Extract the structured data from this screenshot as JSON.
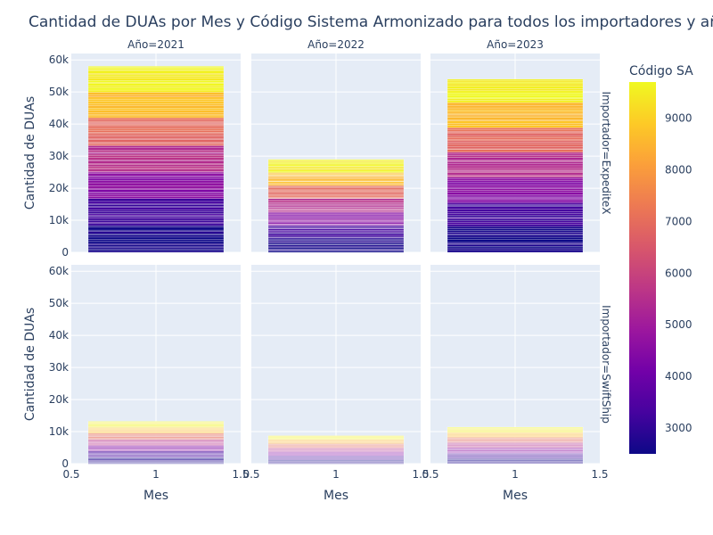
{
  "chart_data": {
    "type": "bar",
    "title": "Cantidad de DUAs por Mes y Código Sistema Armonizado para todos los importadores y años",
    "xlabel": "Mes",
    "ylabel": "Cantidad de DUAs",
    "x_ticks": [
      "0.5",
      "1",
      "1.5"
    ],
    "xlim": [
      0.5,
      1.5
    ],
    "y_ticks": [
      "0",
      "10k",
      "20k",
      "30k",
      "40k",
      "50k",
      "60k"
    ],
    "ylim": [
      0,
      62000
    ],
    "col_facets": [
      "Año=2021",
      "Año=2022",
      "Año=2023"
    ],
    "row_facets": [
      "Importador=ExpediteX",
      "Importador=SwiftShip"
    ],
    "colorbar": {
      "title": "Código SA",
      "range": [
        2500,
        9700
      ],
      "ticks": [
        "3000",
        "4000",
        "5000",
        "6000",
        "7000",
        "8000",
        "9000"
      ],
      "colors": [
        "#0d0887",
        "#46039f",
        "#7201a8",
        "#9c179e",
        "#bd3786",
        "#d8576b",
        "#ed7953",
        "#fb9f3a",
        "#fdca26",
        "#f0f921"
      ]
    },
    "panels": [
      {
        "row": 0,
        "col": 0,
        "total": 58000
      },
      {
        "row": 0,
        "col": 1,
        "total": 29000
      },
      {
        "row": 0,
        "col": 2,
        "total": 54000
      },
      {
        "row": 1,
        "col": 0,
        "total": 13200
      },
      {
        "row": 1,
        "col": 1,
        "total": 8700
      },
      {
        "row": 1,
        "col": 2,
        "total": 11400
      }
    ]
  }
}
